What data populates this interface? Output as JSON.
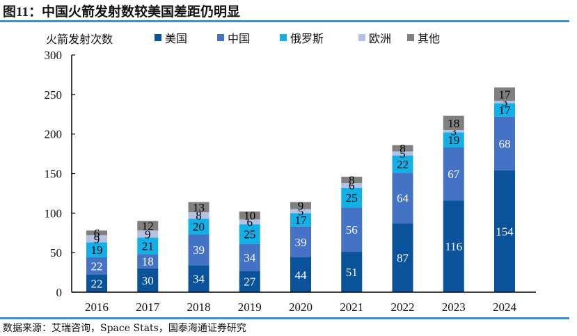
{
  "header": {
    "title_prefix": "图11：",
    "title_text": "中国火箭发射数较美国差距仍明显"
  },
  "footer": {
    "source": "数据来源：艾瑞咨询，Space Stats，国泰海通证券研究"
  },
  "chart_data": {
    "type": "bar",
    "stacked": true,
    "title": "中国火箭发射数较美国差距仍明显",
    "ylabel": "火箭发射次数",
    "xlabel": "",
    "categories": [
      "2016",
      "2017",
      "2018",
      "2019",
      "2020",
      "2021",
      "2022",
      "2023",
      "2024"
    ],
    "ylim": [
      0,
      300
    ],
    "yticks": [
      0,
      50,
      100,
      150,
      200,
      250,
      300
    ],
    "grid": false,
    "legend_position": "top",
    "series": [
      {
        "name": "美国",
        "color": "#0a5299",
        "label_color": "#ffffff",
        "values": [
          22,
          30,
          34,
          27,
          44,
          51,
          87,
          116,
          154
        ]
      },
      {
        "name": "中国",
        "color": "#4472c4",
        "label_color": "#ffffff",
        "values": [
          22,
          18,
          39,
          34,
          39,
          56,
          64,
          67,
          68
        ]
      },
      {
        "name": "俄罗斯",
        "color": "#13b0e8",
        "label_color": "#000000",
        "values": [
          19,
          21,
          20,
          25,
          17,
          25,
          22,
          19,
          17
        ]
      },
      {
        "name": "欧洲",
        "color": "#b4c0e4",
        "label_color": "#000000",
        "values": [
          9,
          9,
          8,
          6,
          5,
          6,
          5,
          3,
          3
        ]
      },
      {
        "name": "其他",
        "color": "#808080",
        "label_color": "#000000",
        "values": [
          6,
          12,
          13,
          10,
          9,
          8,
          8,
          18,
          17
        ]
      }
    ]
  }
}
